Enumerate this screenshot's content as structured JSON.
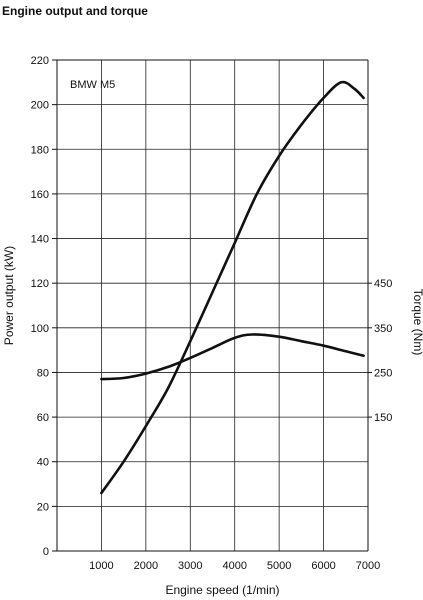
{
  "page": {
    "title": "Engine output and torque"
  },
  "chart_data": {
    "type": "line",
    "title": "Engine output and torque",
    "annotation": "BMW M5",
    "x_axis": {
      "label": "Engine speed (1/min)",
      "range": [
        0,
        7000
      ],
      "ticks": [
        1000,
        2000,
        3000,
        4000,
        5000,
        6000,
        7000
      ],
      "tick_labels": [
        "1000",
        "2000",
        "3000",
        "4000",
        "5000",
        "6000",
        "7000"
      ]
    },
    "y_axis_left": {
      "label": "Power output (kW)",
      "range": [
        0,
        220
      ],
      "ticks": [
        0,
        20,
        40,
        60,
        80,
        100,
        120,
        140,
        160,
        180,
        200,
        220
      ],
      "tick_labels": [
        "0",
        "20",
        "40",
        "60",
        "80",
        "100",
        "120",
        "140",
        "160",
        "180",
        "200",
        "220"
      ]
    },
    "y_axis_right": {
      "label": "Torque (Nm)",
      "left_axis_equivalent": {
        "150": 60,
        "250": 80,
        "350": 100,
        "450": 120
      },
      "ticks": [
        150,
        250,
        350,
        450
      ],
      "tick_labels": [
        "150",
        "250",
        "350",
        "450"
      ]
    },
    "grid": true,
    "series": [
      {
        "points": [
          {
            "x": 1000,
            "y": 26
          },
          {
            "x": 1500,
            "y": 40
          },
          {
            "x": 2000,
            "y": 56
          },
          {
            "x": 2500,
            "y": 73
          },
          {
            "x": 3000,
            "y": 94
          },
          {
            "x": 3500,
            "y": 116
          },
          {
            "x": 4000,
            "y": 138
          },
          {
            "x": 4500,
            "y": 160
          },
          {
            "x": 5000,
            "y": 177
          },
          {
            "x": 5500,
            "y": 191
          },
          {
            "x": 6000,
            "y": 203
          },
          {
            "x": 6400,
            "y": 210
          },
          {
            "x": 6700,
            "y": 207
          },
          {
            "x": 6900,
            "y": 203
          }
        ]
      },
      {
        "points": [
          {
            "x": 1000,
            "y": 77
          },
          {
            "x": 1500,
            "y": 77.5
          },
          {
            "x": 2000,
            "y": 79.5
          },
          {
            "x": 2500,
            "y": 82.5
          },
          {
            "x": 3000,
            "y": 86.5
          },
          {
            "x": 3500,
            "y": 91
          },
          {
            "x": 4000,
            "y": 95.5
          },
          {
            "x": 4400,
            "y": 97
          },
          {
            "x": 5000,
            "y": 96
          },
          {
            "x": 5500,
            "y": 94
          },
          {
            "x": 6000,
            "y": 92
          },
          {
            "x": 6500,
            "y": 89.5
          },
          {
            "x": 6900,
            "y": 87.5
          }
        ]
      }
    ]
  }
}
